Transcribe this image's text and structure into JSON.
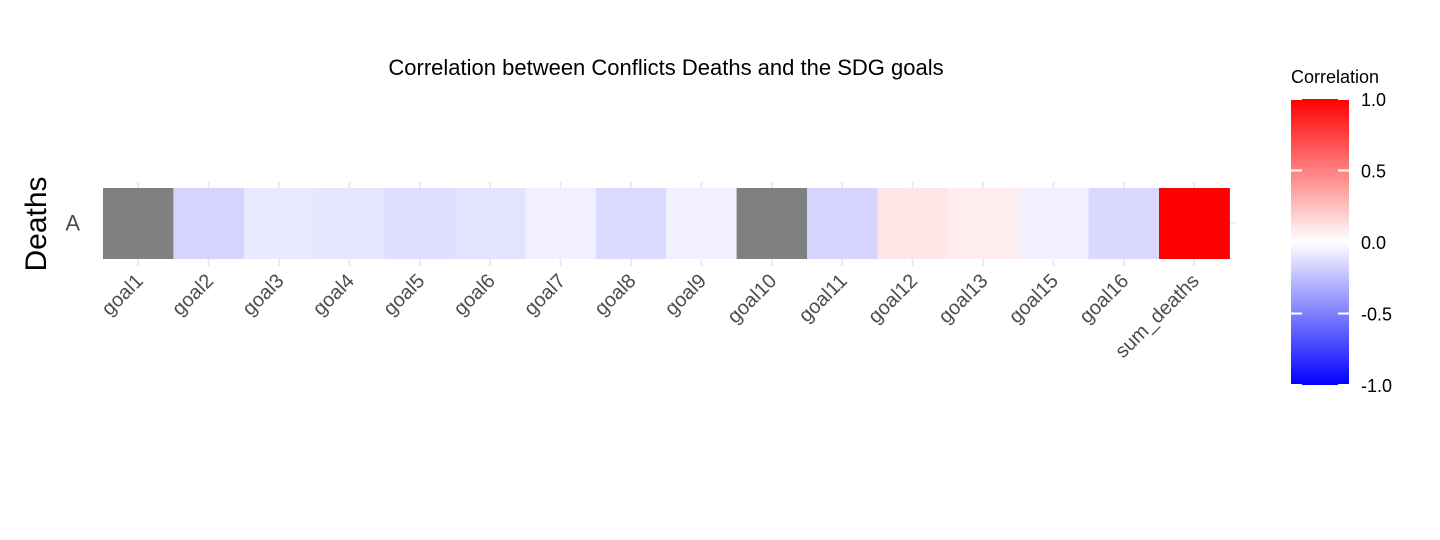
{
  "chart_data": {
    "type": "heatmap",
    "title": "Correlation between Conflicts Deaths and the SDG goals",
    "ylabel": "Deaths",
    "xlabel": "",
    "rows": [
      "A"
    ],
    "categories": [
      "goal1",
      "goal2",
      "goal3",
      "goal4",
      "goal5",
      "goal6",
      "goal7",
      "goal8",
      "goal9",
      "goal10",
      "goal11",
      "goal12",
      "goal13",
      "goal15",
      "goal16",
      "sum_deaths"
    ],
    "values": [
      null,
      -0.17,
      -0.09,
      -0.1,
      -0.13,
      -0.11,
      -0.06,
      -0.14,
      -0.06,
      null,
      -0.17,
      0.1,
      0.07,
      -0.06,
      -0.15,
      1.0
    ],
    "na_color": "#808080",
    "colorscale": {
      "low": "#0000ff",
      "mid": "#ffffff",
      "high": "#ff0000",
      "limits": [
        -1,
        1
      ]
    },
    "legend": {
      "title": "Correlation",
      "ticks": [
        1.0,
        0.5,
        0.0,
        -0.5,
        -1.0
      ],
      "tick_labels": [
        "1.0",
        "0.5",
        "0.0",
        "-0.5",
        "-1.0"
      ],
      "placement": "right"
    },
    "grid": true
  }
}
